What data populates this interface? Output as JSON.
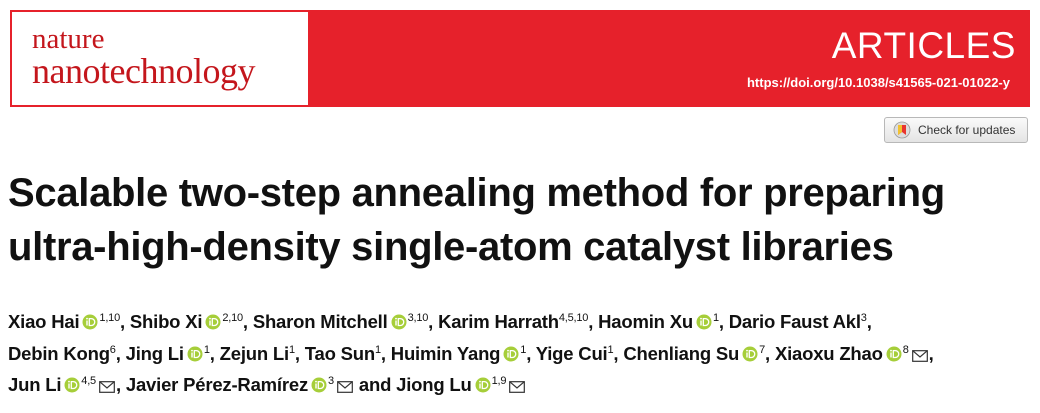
{
  "journal": {
    "line1": "nature",
    "line2": "nanotechnology"
  },
  "section": "ARTICLES",
  "doi": "https://doi.org/10.1038/s41565-021-01022-y",
  "check_updates": "Check for updates",
  "title_lines": [
    "Scalable two-step annealing method for preparing",
    "ultra-high-density single-atom catalyst libraries"
  ],
  "author_lines": [
    [
      {
        "name": "Xiao Hai",
        "orcid": true,
        "affil": "1,10",
        "sep": ", "
      },
      {
        "name": "Shibo Xi",
        "orcid": true,
        "affil": "2,10",
        "sep": ", "
      },
      {
        "name": "Sharon Mitchell",
        "orcid": true,
        "affil": "3,10",
        "sep": ", "
      },
      {
        "name": "Karim Harrath",
        "orcid": false,
        "affil": "4,5,10",
        "sep": ", "
      },
      {
        "name": "Haomin Xu",
        "orcid": true,
        "affil": "1",
        "sep": ", "
      },
      {
        "name": "Dario Faust Akl",
        "orcid": false,
        "affil": "3",
        "sep": ","
      }
    ],
    [
      {
        "name": "Debin Kong",
        "orcid": false,
        "affil": "6",
        "sep": ", "
      },
      {
        "name": "Jing Li",
        "orcid": true,
        "affil": "1",
        "sep": ", "
      },
      {
        "name": "Zejun Li",
        "orcid": false,
        "affil": "1",
        "sep": ", "
      },
      {
        "name": "Tao Sun",
        "orcid": false,
        "affil": "1",
        "sep": ", "
      },
      {
        "name": "Huimin Yang",
        "orcid": true,
        "affil": "1",
        "sep": ", "
      },
      {
        "name": "Yige Cui",
        "orcid": false,
        "affil": "1",
        "sep": ", "
      },
      {
        "name": "Chenliang Su",
        "orcid": true,
        "affil": "7",
        "sep": ", "
      },
      {
        "name": "Xiaoxu Zhao",
        "orcid": true,
        "affil": "8",
        "email": true,
        "sep": ","
      }
    ],
    [
      {
        "name": "Jun Li",
        "orcid": true,
        "affil": "4,5",
        "email": true,
        "sep": ", "
      },
      {
        "name": "Javier Pérez-Ramírez",
        "orcid": true,
        "affil": "3",
        "email": true,
        "sep": " and "
      },
      {
        "name": "Jiong Lu",
        "orcid": true,
        "affil": "1,9",
        "email": true
      }
    ]
  ]
}
